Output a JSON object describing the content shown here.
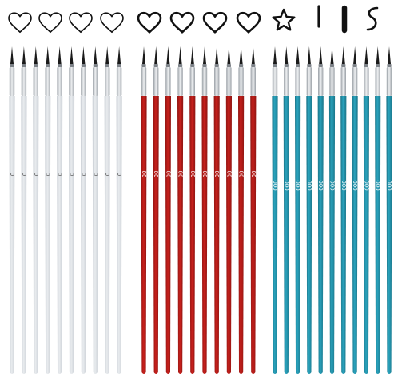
{
  "image": {
    "subject": "paint-brush-set",
    "background": "#ffffff"
  },
  "strokes_row": {
    "icons": [
      "heart-stroke-icon",
      "heart-stroke-icon",
      "heart-stroke-icon",
      "heart-stroke-icon",
      "heart-bold-icon",
      "heart-bold-icon",
      "heart-bold-icon",
      "heart-bold-icon",
      "star-icon",
      "line-icon",
      "thick-line-icon",
      "s-curve-icon"
    ],
    "ink_color": "#111111"
  },
  "groups": [
    {
      "name": "white-brushes",
      "count": 10,
      "size_label": "0",
      "handle_color": "#e9ecef",
      "handle_shade": "#c9ced4",
      "label_color": "#555555"
    },
    {
      "name": "red-brushes",
      "count": 10,
      "size_label": "00",
      "handle_color": "#c8201c",
      "handle_shade": "#8e1512",
      "label_color": "#ffffff"
    },
    {
      "name": "blue-brushes",
      "count": 11,
      "size_label": "000",
      "handle_color": "#2aa3bd",
      "handle_shade": "#1a7488",
      "label_color": "#ffffff"
    }
  ],
  "ferrule_color": "#c9cdd2",
  "bristle_color": "#1a1a1a"
}
